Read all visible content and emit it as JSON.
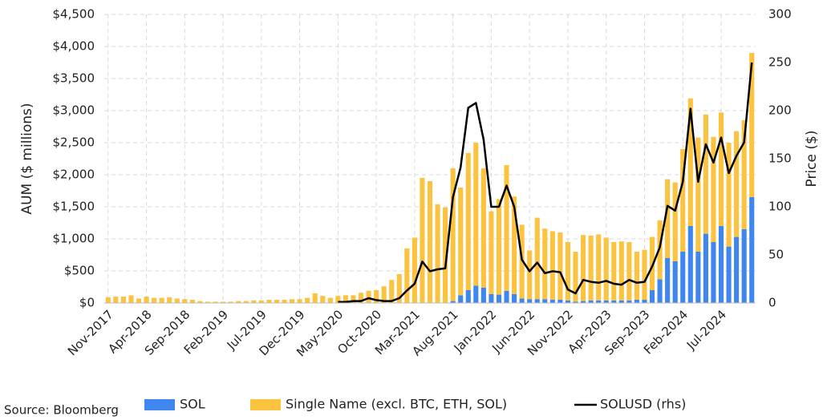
{
  "chart_data": {
    "type": "bar",
    "stacked": true,
    "source": "Source: Bloomberg",
    "ylabel": "AUM ($ millions)",
    "y2label": "Price ($)",
    "categories": [
      "Nov-2017",
      null,
      null,
      null,
      null,
      "Apr-2018",
      null,
      null,
      null,
      null,
      "Sep-2018",
      null,
      null,
      null,
      null,
      "Feb-2019",
      null,
      null,
      null,
      null,
      "Jul-2019",
      null,
      null,
      null,
      null,
      "Dec-2019",
      null,
      null,
      null,
      null,
      "May-2020",
      null,
      null,
      null,
      null,
      "Oct-2020",
      null,
      null,
      null,
      null,
      "Mar-2021",
      null,
      null,
      null,
      null,
      "Aug-2021",
      null,
      null,
      null,
      null,
      "Jan-2022",
      null,
      null,
      null,
      null,
      "Jun-2022",
      null,
      null,
      null,
      null,
      "Nov-2022",
      null,
      null,
      null,
      null,
      "Apr-2023",
      null,
      null,
      null,
      null,
      "Sep-2023",
      null,
      null,
      null,
      null,
      "Feb-2024",
      null,
      null,
      null,
      null,
      "Jul-2024",
      null,
      null,
      null,
      null
    ],
    "series": [
      {
        "name": "SOL",
        "color": "#3f86ef",
        "values": [
          0,
          0,
          0,
          0,
          0,
          0,
          0,
          0,
          0,
          0,
          0,
          0,
          0,
          0,
          0,
          0,
          0,
          0,
          0,
          0,
          0,
          0,
          0,
          0,
          0,
          0,
          0,
          0,
          0,
          0,
          0,
          0,
          0,
          0,
          0,
          0,
          0,
          0,
          0,
          0,
          0,
          0,
          0,
          0,
          0,
          30,
          120,
          200,
          270,
          240,
          140,
          130,
          190,
          140,
          70,
          60,
          60,
          60,
          50,
          50,
          40,
          20,
          30,
          40,
          40,
          40,
          40,
          40,
          40,
          50,
          50,
          200,
          370,
          700,
          650,
          800,
          1200,
          800,
          1080,
          950,
          1200,
          880,
          1030,
          1150,
          1650
        ]
      },
      {
        "name": "Single Name (excl. BTC, ETH, SOL)",
        "color": "#fbc33f",
        "values": [
          90,
          100,
          100,
          120,
          70,
          100,
          80,
          80,
          90,
          70,
          60,
          50,
          30,
          20,
          20,
          20,
          20,
          30,
          30,
          40,
          40,
          50,
          50,
          50,
          60,
          60,
          80,
          150,
          110,
          80,
          110,
          120,
          120,
          160,
          190,
          200,
          260,
          360,
          450,
          850,
          1020,
          1950,
          1900,
          1540,
          1490,
          2070,
          1680,
          2140,
          2230,
          1860,
          1290,
          1490,
          1960,
          1520,
          1150,
          760,
          1270,
          1100,
          1070,
          1050,
          910,
          780,
          1030,
          1010,
          1030,
          980,
          910,
          920,
          910,
          750,
          780,
          830,
          920,
          1230,
          1230,
          1600,
          1990,
          1780,
          1860,
          1640,
          1770,
          1620,
          1650,
          1700,
          2250
        ]
      },
      {
        "name": "SOLUSD (rhs)",
        "color": "#000000",
        "type": "line",
        "axis": "y2",
        "values": [
          null,
          null,
          null,
          null,
          null,
          null,
          null,
          null,
          null,
          null,
          null,
          null,
          null,
          null,
          null,
          null,
          null,
          null,
          null,
          null,
          null,
          null,
          null,
          null,
          null,
          null,
          null,
          null,
          null,
          null,
          1,
          1,
          2,
          2,
          5,
          3,
          2,
          2,
          5,
          13,
          20,
          43,
          33,
          35,
          36,
          110,
          141,
          203,
          208,
          170,
          100,
          100,
          122,
          100,
          45,
          33,
          42,
          31,
          33,
          32,
          14,
          10,
          24,
          22,
          21,
          23,
          20,
          19,
          24,
          21,
          22,
          38,
          58,
          101,
          96,
          126,
          202,
          126,
          165,
          146,
          172,
          135,
          153,
          167,
          250
        ]
      }
    ],
    "ylim": [
      0,
      4500
    ],
    "yticks": [
      {
        "value": 0,
        "label": "$0"
      },
      {
        "value": 500,
        "label": "$500"
      },
      {
        "value": 1000,
        "label": "$1,000"
      },
      {
        "value": 1500,
        "label": "$1,500"
      },
      {
        "value": 2000,
        "label": "$2,000"
      },
      {
        "value": 2500,
        "label": "$2,500"
      },
      {
        "value": 3000,
        "label": "$3,000"
      },
      {
        "value": 3500,
        "label": "$3,500"
      },
      {
        "value": 4000,
        "label": "$4,000"
      },
      {
        "value": 4500,
        "label": "$4,500"
      }
    ],
    "y2lim": [
      0,
      300
    ],
    "y2ticks": [
      0,
      50,
      100,
      150,
      200,
      250,
      300
    ],
    "grid": true,
    "legend": "bottom"
  }
}
